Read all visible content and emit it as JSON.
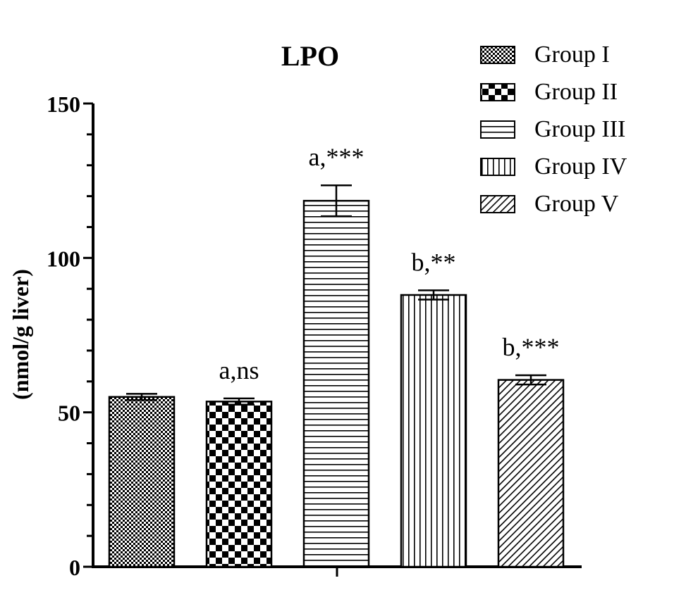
{
  "chart_data": {
    "type": "bar",
    "title": "LPO",
    "xlabel": "",
    "ylabel": "(nmol/g liver)",
    "ylim": [
      0,
      150
    ],
    "yticks": [
      0,
      50,
      100,
      150
    ],
    "categories": [
      "Group I",
      "Group II",
      "Group III",
      "Group IV",
      "Group V"
    ],
    "values": [
      55,
      53.5,
      118.5,
      88,
      60.5
    ],
    "errors": [
      1,
      1,
      5,
      1.5,
      1.5
    ],
    "annotations": [
      "",
      "a,ns",
      "a,***",
      "b,**",
      "b,***"
    ],
    "patterns": [
      "fine-checker",
      "checker",
      "horizontal-lines",
      "vertical-lines",
      "diagonal-lines"
    ],
    "legend": {
      "position": "top-right",
      "entries": [
        "Group I",
        "Group II",
        "Group III",
        "Group IV",
        "Group V"
      ]
    },
    "grid": false,
    "colors": {
      "ink": "#000000",
      "background": "#ffffff"
    }
  }
}
